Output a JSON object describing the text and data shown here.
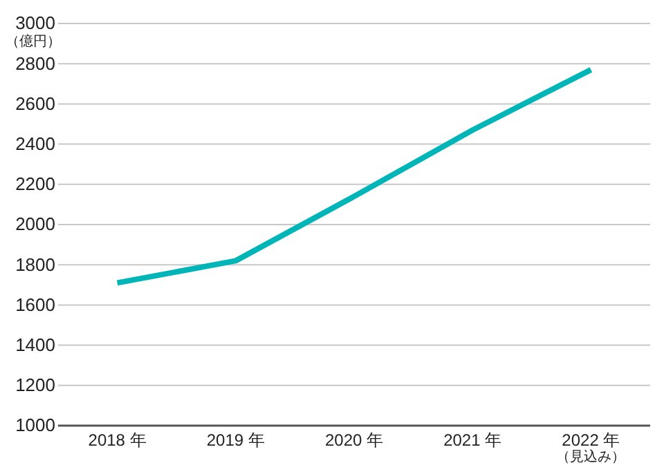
{
  "chart_data": {
    "type": "line",
    "ylabel": "（億円）",
    "categories": [
      "2018 年",
      "2019 年",
      "2020 年",
      "2021 年",
      "2022 年（見込み）"
    ],
    "series": [
      {
        "color": "#00b5b8",
        "values": [
          1710,
          1820,
          2140,
          2470,
          2770
        ]
      }
    ],
    "ylim": [
      1000,
      3000
    ],
    "yticks": [
      1000,
      1200,
      1400,
      1600,
      1800,
      2000,
      2200,
      2400,
      2600,
      2800,
      3000
    ],
    "grid": "y",
    "marker": "none",
    "line_style": "solid",
    "legend": false
  }
}
